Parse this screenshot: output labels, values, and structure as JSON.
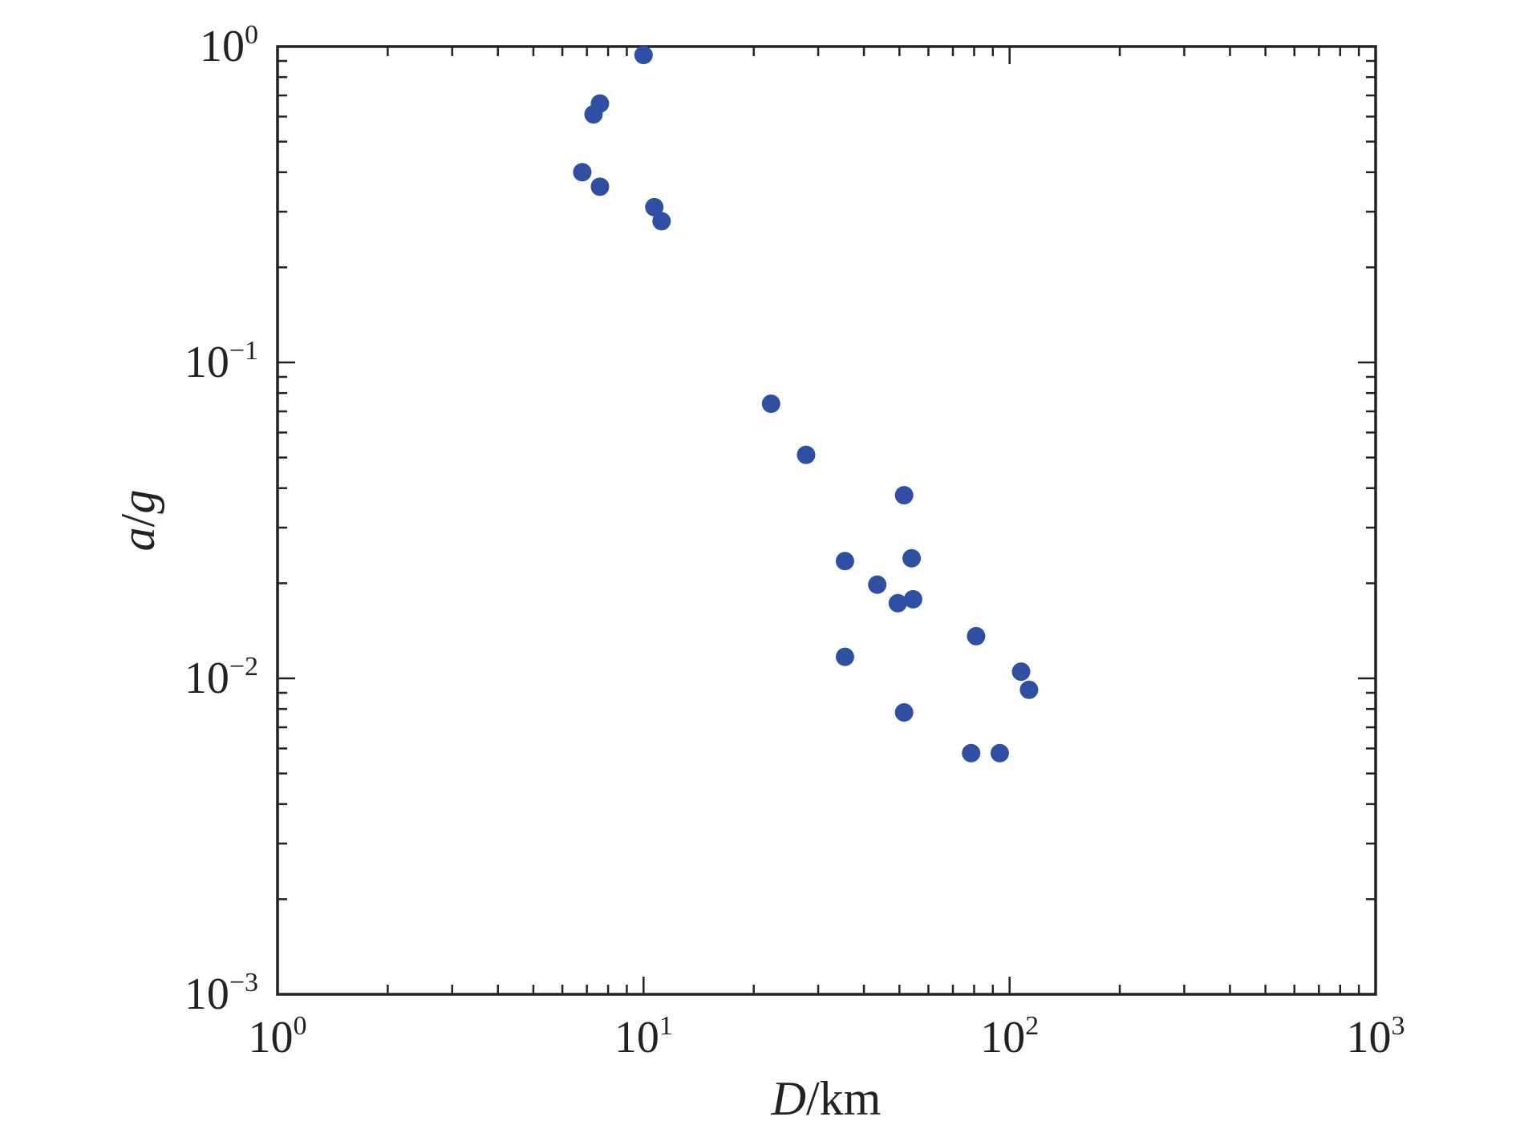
{
  "chart_data": {
    "type": "scatter",
    "title": "",
    "xlabel": {
      "italic": "D",
      "rest": "/km"
    },
    "ylabel": {
      "italic": "a",
      "mid": "/",
      "italic2": "g"
    },
    "x_scale": "log",
    "y_scale": "log",
    "xlim": [
      1,
      1000
    ],
    "ylim": [
      0.001,
      1
    ],
    "x_ticks": [
      {
        "base": "10",
        "exp": "0",
        "value": 1
      },
      {
        "base": "10",
        "exp": "1",
        "value": 10
      },
      {
        "base": "10",
        "exp": "2",
        "value": 100
      },
      {
        "base": "10",
        "exp": "3",
        "value": 1000
      }
    ],
    "y_ticks": [
      {
        "base": "10",
        "exp": "0",
        "value": 1
      },
      {
        "base": "10",
        "exp": "−1",
        "value": 0.1
      },
      {
        "base": "10",
        "exp": "−2",
        "value": 0.01
      },
      {
        "base": "10",
        "exp": "−3",
        "value": 0.001
      }
    ],
    "grid": false,
    "legend": "none",
    "marker_color": "#2f4fa3",
    "points": [
      {
        "x": 10.0,
        "y": 0.94
      },
      {
        "x": 7.6,
        "y": 0.66
      },
      {
        "x": 7.3,
        "y": 0.61
      },
      {
        "x": 6.8,
        "y": 0.4
      },
      {
        "x": 7.6,
        "y": 0.36
      },
      {
        "x": 10.7,
        "y": 0.31
      },
      {
        "x": 11.2,
        "y": 0.28
      },
      {
        "x": 22.3,
        "y": 0.074
      },
      {
        "x": 27.8,
        "y": 0.051
      },
      {
        "x": 51.5,
        "y": 0.038
      },
      {
        "x": 35.5,
        "y": 0.0235
      },
      {
        "x": 54.0,
        "y": 0.024
      },
      {
        "x": 43.5,
        "y": 0.0198
      },
      {
        "x": 49.5,
        "y": 0.0173
      },
      {
        "x": 54.5,
        "y": 0.0178
      },
      {
        "x": 81.0,
        "y": 0.0136
      },
      {
        "x": 35.5,
        "y": 0.0117
      },
      {
        "x": 107.5,
        "y": 0.0105
      },
      {
        "x": 113.0,
        "y": 0.0092
      },
      {
        "x": 51.5,
        "y": 0.0078
      },
      {
        "x": 78.5,
        "y": 0.0058
      },
      {
        "x": 94.0,
        "y": 0.0058
      }
    ]
  }
}
